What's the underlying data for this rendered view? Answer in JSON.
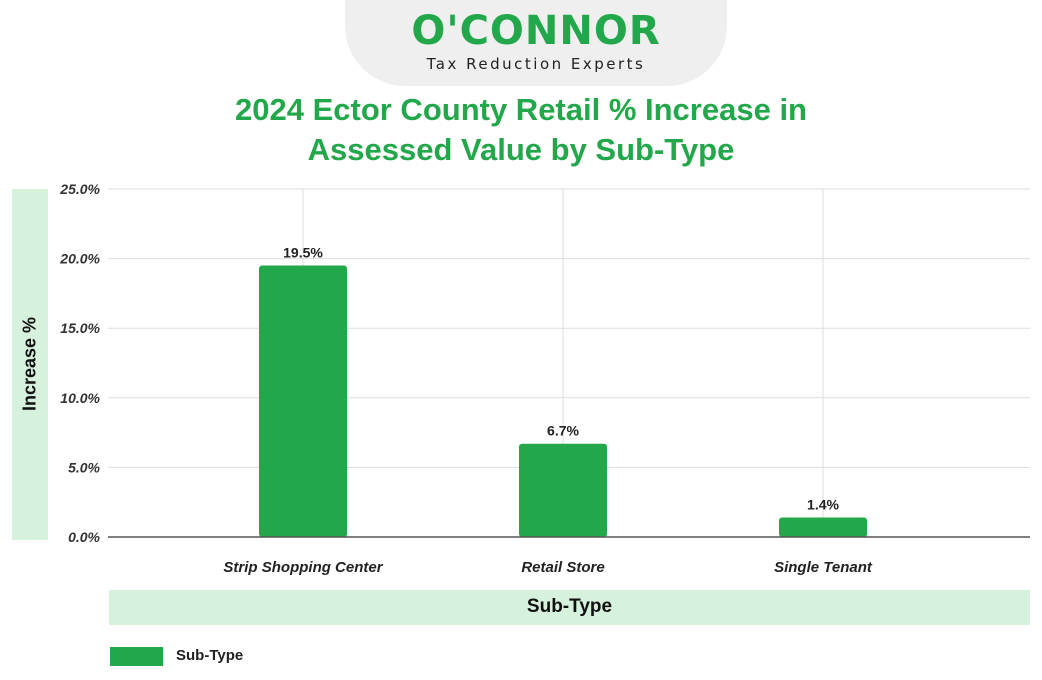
{
  "logo": {
    "name": "O'CONNOR",
    "tagline": "Tax Reduction Experts"
  },
  "colors": {
    "brand_green": "#22a84a",
    "band_green": "#d6f1dc",
    "grid": "#dddddd"
  },
  "chart_data": {
    "type": "bar",
    "title": "2024 Ector County Retail % Increase in Assessed Value by Sub-Type",
    "title_lines": [
      "2024 Ector County Retail % Increase in",
      "Assessed Value by Sub-Type"
    ],
    "xlabel": "Sub-Type",
    "ylabel": "Increase %",
    "categories": [
      "Strip Shopping Center",
      "Retail Store",
      "Single Tenant"
    ],
    "series": [
      {
        "name": "Sub-Type",
        "values": [
          19.5,
          6.7,
          1.4
        ]
      }
    ],
    "data_labels": [
      "19.5%",
      "6.7%",
      "1.4%"
    ],
    "ylim": [
      0,
      25
    ],
    "yticks": [
      "0.0%",
      "5.0%",
      "10.0%",
      "15.0%",
      "20.0%",
      "25.0%"
    ],
    "ytick_values": [
      0,
      5,
      10,
      15,
      20,
      25
    ],
    "grid": true,
    "legend": "bottom-left"
  }
}
